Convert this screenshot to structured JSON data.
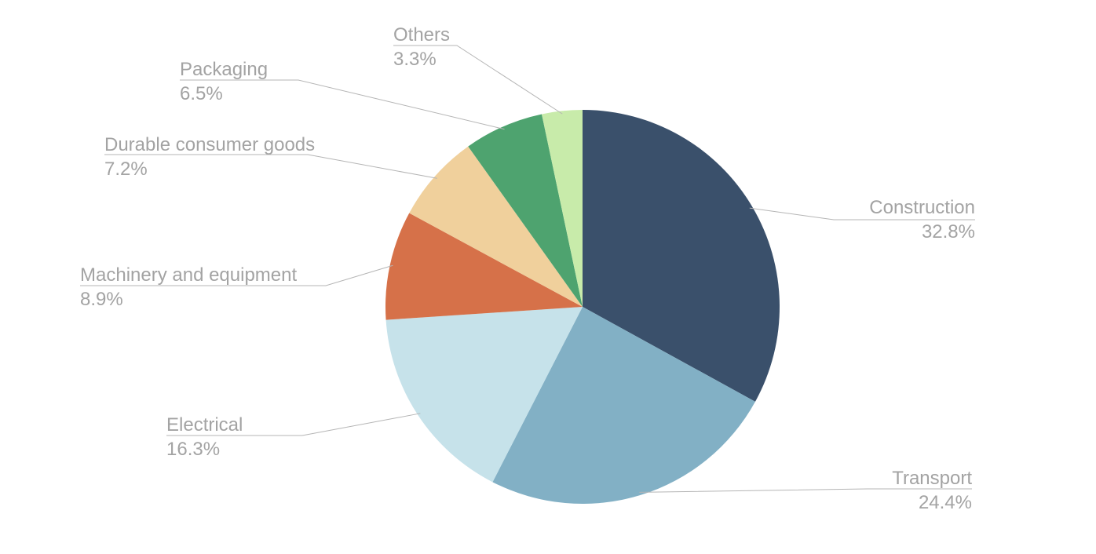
{
  "chart_data": {
    "type": "pie",
    "title": "",
    "slices": [
      {
        "label": "Construction",
        "value": 32.8,
        "value_text": "32.8%",
        "color": "#3a506b"
      },
      {
        "label": "Transport",
        "value": 24.4,
        "value_text": "24.4%",
        "color": "#82b0c5"
      },
      {
        "label": "Electrical",
        "value": 16.3,
        "value_text": "16.3%",
        "color": "#c6e2ea"
      },
      {
        "label": "Machinery and equipment",
        "value": 8.9,
        "value_text": "8.9%",
        "color": "#d67149"
      },
      {
        "label": "Durable consumer goods",
        "value": 7.2,
        "value_text": "7.2%",
        "color": "#f0d09c"
      },
      {
        "label": "Packaging",
        "value": 6.5,
        "value_text": "6.5%",
        "color": "#4ea36f"
      },
      {
        "label": "Others",
        "value": 3.3,
        "value_text": "3.3%",
        "color": "#c8ebaa"
      }
    ],
    "start_angle": "top (12 o'clock)",
    "direction": "clockwise",
    "labels": "outside with leader lines",
    "legend": "none"
  }
}
